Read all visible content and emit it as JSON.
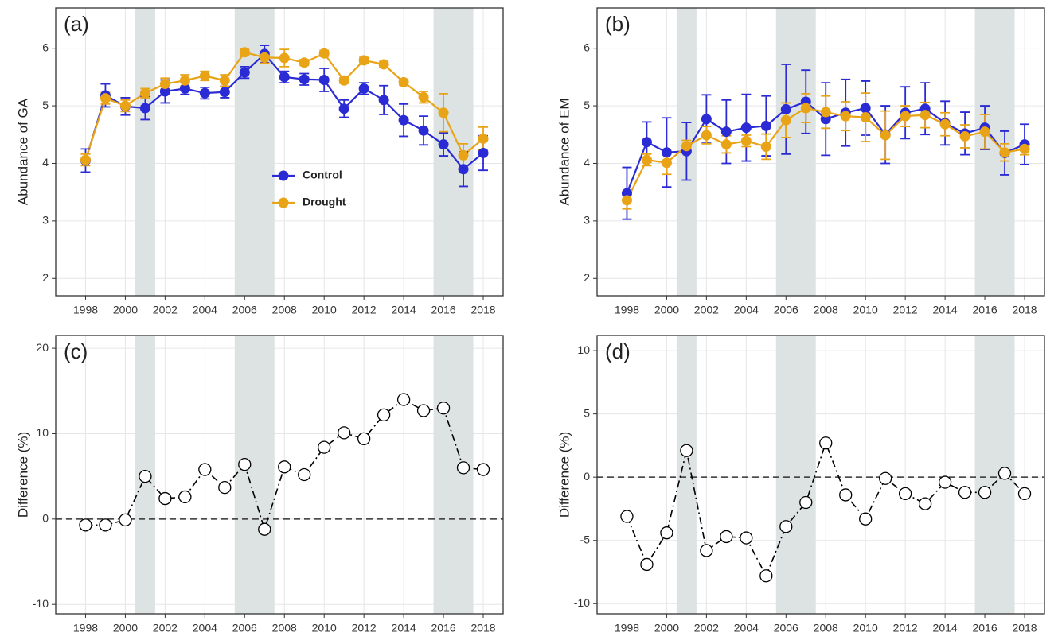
{
  "chart_data": [
    {
      "type": "line",
      "panel_label": "(a)",
      "y_label": "Abundance of GA",
      "x": [
        1998,
        1999,
        2000,
        2001,
        2002,
        2003,
        2004,
        2005,
        2006,
        2007,
        2008,
        2009,
        2010,
        2011,
        2012,
        2013,
        2014,
        2015,
        2016,
        2017,
        2018
      ],
      "series": [
        {
          "name": "Control",
          "color": "#2b2bd6",
          "values": [
            4.05,
            5.18,
            4.99,
            4.96,
            5.25,
            5.3,
            5.22,
            5.24,
            5.58,
            5.9,
            5.5,
            5.46,
            5.45,
            4.95,
            5.3,
            5.1,
            4.75,
            4.57,
            4.33,
            3.9,
            4.18
          ],
          "errors": [
            0.2,
            0.2,
            0.15,
            0.2,
            0.2,
            0.1,
            0.1,
            0.1,
            0.1,
            0.15,
            0.1,
            0.1,
            0.2,
            0.15,
            0.1,
            0.25,
            0.28,
            0.25,
            0.2,
            0.3,
            0.3
          ]
        },
        {
          "name": "Drought",
          "color": "#e8a317",
          "values": [
            4.06,
            5.13,
            5.0,
            5.22,
            5.38,
            5.44,
            5.52,
            5.44,
            5.93,
            5.84,
            5.83,
            5.75,
            5.91,
            5.44,
            5.79,
            5.72,
            5.41,
            5.15,
            4.88,
            4.14,
            4.43
          ],
          "errors": [
            0.1,
            0.1,
            0.1,
            0.08,
            0.1,
            0.1,
            0.08,
            0.1,
            0.05,
            0.1,
            0.15,
            0.05,
            0.05,
            0.05,
            0.05,
            0.05,
            0.05,
            0.1,
            0.33,
            0.2,
            0.2
          ]
        }
      ],
      "shaded_periods": [
        [
          2000.5,
          2001.5
        ],
        [
          2005.5,
          2007.5
        ],
        [
          2015.5,
          2017.5
        ]
      ],
      "xlim": [
        1996.5,
        2019
      ],
      "xticks": [
        1998,
        2000,
        2002,
        2004,
        2006,
        2008,
        2010,
        2012,
        2014,
        2016,
        2018
      ],
      "ylim": [
        1.7,
        6.7
      ],
      "yticks": [
        2,
        3,
        4,
        5,
        6
      ],
      "grid": true,
      "legend": true,
      "legend_position": "center"
    },
    {
      "type": "line",
      "panel_label": "(b)",
      "y_label": "Abundance of EM",
      "x": [
        1998,
        1999,
        2000,
        2001,
        2002,
        2003,
        2004,
        2005,
        2006,
        2007,
        2008,
        2009,
        2010,
        2011,
        2012,
        2013,
        2014,
        2015,
        2016,
        2017,
        2018
      ],
      "series": [
        {
          "name": "Control",
          "color": "#2b2bd6",
          "values": [
            3.48,
            4.37,
            4.19,
            4.21,
            4.77,
            4.55,
            4.62,
            4.65,
            4.94,
            5.07,
            4.77,
            4.88,
            4.96,
            4.5,
            4.88,
            4.95,
            4.7,
            4.52,
            4.62,
            4.18,
            4.33
          ],
          "errors": [
            0.45,
            0.35,
            0.6,
            0.5,
            0.42,
            0.55,
            0.58,
            0.52,
            0.78,
            0.55,
            0.63,
            0.58,
            0.47,
            0.5,
            0.45,
            0.45,
            0.38,
            0.37,
            0.38,
            0.38,
            0.35
          ]
        },
        {
          "name": "Drought",
          "color": "#e8a317",
          "values": [
            3.36,
            4.06,
            4.01,
            4.3,
            4.49,
            4.33,
            4.39,
            4.29,
            4.75,
            4.96,
            4.89,
            4.82,
            4.8,
            4.49,
            4.82,
            4.84,
            4.68,
            4.47,
            4.55,
            4.19,
            4.25
          ],
          "errors": [
            0.15,
            0.1,
            0.2,
            0.1,
            0.15,
            0.15,
            0.1,
            0.22,
            0.3,
            0.25,
            0.28,
            0.25,
            0.42,
            0.42,
            0.18,
            0.22,
            0.2,
            0.2,
            0.3,
            0.15,
            0.1
          ]
        }
      ],
      "shaded_periods": [
        [
          2000.5,
          2001.5
        ],
        [
          2005.5,
          2007.5
        ],
        [
          2015.5,
          2017.5
        ]
      ],
      "xlim": [
        1996.5,
        2019
      ],
      "xticks": [
        1998,
        2000,
        2002,
        2004,
        2006,
        2008,
        2010,
        2012,
        2014,
        2016,
        2018
      ],
      "ylim": [
        1.7,
        6.7
      ],
      "yticks": [
        2,
        3,
        4,
        5,
        6
      ],
      "grid": true,
      "legend": false
    },
    {
      "type": "line",
      "panel_label": "(c)",
      "y_label": "Difference (%)",
      "color": "#000000",
      "x": [
        1998,
        1999,
        2000,
        2001,
        2002,
        2003,
        2004,
        2005,
        2006,
        2007,
        2008,
        2009,
        2010,
        2011,
        2012,
        2013,
        2014,
        2015,
        2016,
        2017,
        2018
      ],
      "values": [
        -0.7,
        -0.7,
        -0.1,
        5.0,
        2.4,
        2.6,
        5.8,
        3.7,
        6.4,
        -1.2,
        6.1,
        5.2,
        8.4,
        10.1,
        9.4,
        12.2,
        14.0,
        12.7,
        13.0,
        6.0,
        5.8
      ],
      "reference_line": 0,
      "shaded_periods": [
        [
          2000.5,
          2001.5
        ],
        [
          2005.5,
          2007.5
        ],
        [
          2015.5,
          2017.5
        ]
      ],
      "xlim": [
        1996.5,
        2019
      ],
      "xticks": [
        1998,
        2000,
        2002,
        2004,
        2006,
        2008,
        2010,
        2012,
        2014,
        2016,
        2018
      ],
      "ylim": [
        -11.1,
        21.5
      ],
      "yticks": [
        -10,
        0,
        10,
        20
      ],
      "grid": true,
      "legend": false
    },
    {
      "type": "line",
      "panel_label": "(d)",
      "y_label": "Difference (%)",
      "color": "#000000",
      "x": [
        1998,
        1999,
        2000,
        2001,
        2002,
        2003,
        2004,
        2005,
        2006,
        2007,
        2008,
        2009,
        2010,
        2011,
        2012,
        2013,
        2014,
        2015,
        2016,
        2017,
        2018
      ],
      "values": [
        -3.1,
        -6.9,
        -4.4,
        2.1,
        -5.8,
        -4.7,
        -4.8,
        -7.8,
        -3.9,
        -2.0,
        2.7,
        -1.4,
        -3.3,
        -0.1,
        -1.3,
        -2.1,
        -0.4,
        -1.2,
        -1.2,
        0.3,
        -1.3
      ],
      "reference_line": 0,
      "shaded_periods": [
        [
          2000.5,
          2001.5
        ],
        [
          2005.5,
          2007.5
        ],
        [
          2015.5,
          2017.5
        ]
      ],
      "xlim": [
        1996.5,
        2019
      ],
      "xticks": [
        1998,
        2000,
        2002,
        2004,
        2006,
        2008,
        2010,
        2012,
        2014,
        2016,
        2018
      ],
      "ylim": [
        -10.8,
        11.2
      ],
      "yticks": [
        -10,
        -5,
        0,
        5,
        10
      ],
      "grid": true,
      "legend": false
    }
  ]
}
